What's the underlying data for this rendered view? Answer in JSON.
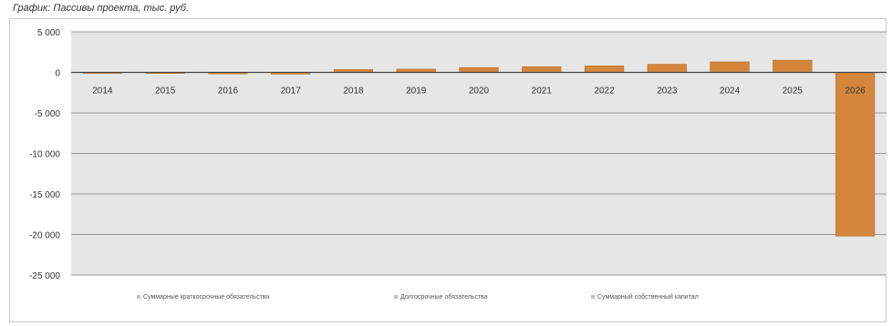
{
  "chart_data": {
    "type": "bar",
    "title": "График: Пассивы проекта, тыс. руб.",
    "categories": [
      "2014",
      "2015",
      "2016",
      "2017",
      "2018",
      "2019",
      "2020",
      "2021",
      "2022",
      "2023",
      "2024",
      "2025",
      "2026"
    ],
    "series": [
      {
        "name": "Суммарные краткосрочные обязательства",
        "values": [
          0,
          0,
          0,
          0,
          0,
          0,
          0,
          0,
          0,
          0,
          0,
          0,
          0
        ]
      },
      {
        "name": "Долгосрочные обязательства",
        "values": [
          0,
          0,
          0,
          0,
          0,
          0,
          0,
          0,
          0,
          0,
          0,
          0,
          0
        ]
      },
      {
        "name": "Суммарный собственный капитал",
        "values": [
          -50,
          -120,
          -180,
          -200,
          350,
          400,
          600,
          700,
          800,
          1000,
          1300,
          1500,
          -20200
        ]
      }
    ],
    "ylim": [
      -25000,
      5000
    ],
    "yticks": [
      "5 000",
      "0",
      "-5 000",
      "-10 000",
      "-15 000",
      "-20 000",
      "-25 000"
    ],
    "ytick_values": [
      5000,
      0,
      -5000,
      -10000,
      -15000,
      -20000,
      -25000
    ],
    "grid": true,
    "legend_position": "bottom",
    "colors": {
      "plot_bg": "#e6e6e6",
      "bar": "#d4873c",
      "bar_dark": "#b86e28",
      "grid": "#9a9a9a",
      "zero": "#444444",
      "legend_marker": "#c0c0c0"
    }
  }
}
